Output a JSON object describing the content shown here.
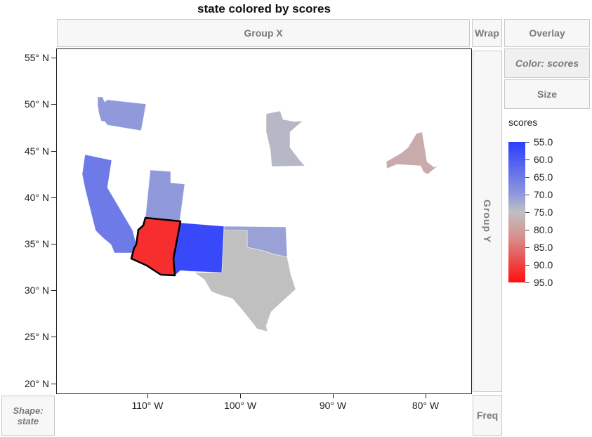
{
  "title": "state colored by scores",
  "zones": {
    "group_x": "Group X",
    "group_y": "Group Y",
    "wrap": "Wrap",
    "overlay": "Overlay",
    "color": "Color: scores",
    "size": "Size",
    "freq": "Freq",
    "shape": "Shape:\nstate"
  },
  "axes": {
    "y_ticks": [
      "55° N",
      "50° N",
      "45° N",
      "40° N",
      "35° N",
      "30° N",
      "25° N",
      "20° N"
    ],
    "x_ticks": [
      "110° W",
      "100° W",
      "90° W",
      "80° W"
    ]
  },
  "legend": {
    "title": "scores",
    "labels": [
      "55.0",
      "60.0",
      "65.0",
      "70.0",
      "75.0",
      "80.0",
      "85.0",
      "90.0",
      "95.0"
    ]
  },
  "colors": {
    "low": "#2b3dff",
    "mid": "#c0c0c0",
    "high": "#ff1010",
    "selected_outline": "#000000"
  },
  "chart_data": {
    "type": "map",
    "title": "state colored by scores",
    "color_by": "scores",
    "color_range": [
      55,
      95
    ],
    "x_axis": "longitude",
    "y_axis": "latitude",
    "xlim": [
      -119,
      -75
    ],
    "ylim": [
      19.5,
      56
    ],
    "states": [
      {
        "name": "Washington",
        "score": 70
      },
      {
        "name": "California",
        "score": 65
      },
      {
        "name": "Utah",
        "score": 70
      },
      {
        "name": "Arizona",
        "score": 92,
        "selected": true
      },
      {
        "name": "New Mexico",
        "score": 57
      },
      {
        "name": "Oklahoma",
        "score": 71
      },
      {
        "name": "Texas",
        "score": 75
      },
      {
        "name": "Minnesota",
        "score": 74
      },
      {
        "name": "New York",
        "score": 78
      }
    ]
  }
}
